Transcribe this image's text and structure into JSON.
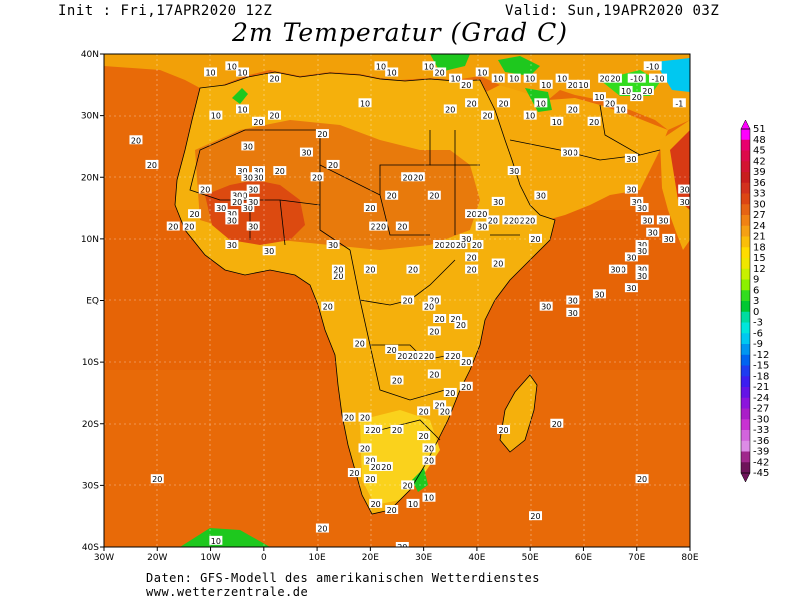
{
  "header": {
    "init": "Init : Fri,17APR2020 12Z",
    "valid": "Valid: Sun,19APR2020 03Z",
    "title": "2m Temperatur (Grad C)"
  },
  "footer": {
    "line1": "Daten: GFS-Modell des amerikanischen Wetterdienstes",
    "line2": "www.wetterzentrale.de"
  },
  "map": {
    "lon_range": [
      -30,
      80
    ],
    "lat_range": [
      -40,
      40
    ],
    "lon_ticks": [
      "30W",
      "20W",
      "10W",
      "0",
      "10E",
      "20E",
      "30E",
      "40E",
      "50E",
      "60E",
      "70E",
      "80E"
    ],
    "lat_ticks": [
      "40N",
      "30N",
      "20N",
      "10N",
      "EQ",
      "10S",
      "20S",
      "30S",
      "40S"
    ],
    "ocean_color": "#e86a08",
    "land_color": "#f9c002",
    "hot_color": "#d83a14",
    "cool_color": "#1ec81e",
    "labels": [
      {
        "v": "10",
        "lon": -10,
        "lat": 37
      },
      {
        "v": "10",
        "lon": -6,
        "lat": 38
      },
      {
        "v": "10",
        "lon": -4,
        "lat": 37
      },
      {
        "v": "20",
        "lon": 2,
        "lat": 36
      },
      {
        "v": "10",
        "lon": -9,
        "lat": 30
      },
      {
        "v": "10",
        "lon": -4,
        "lat": 31
      },
      {
        "v": "20",
        "lon": -1,
        "lat": 29
      },
      {
        "v": "20",
        "lon": 2,
        "lat": 30
      },
      {
        "v": "10",
        "lon": 22,
        "lat": 38
      },
      {
        "v": "10",
        "lon": 24,
        "lat": 37
      },
      {
        "v": "10",
        "lon": 31,
        "lat": 38
      },
      {
        "v": "20",
        "lon": 33,
        "lat": 37
      },
      {
        "v": "10",
        "lon": 36,
        "lat": 36
      },
      {
        "v": "20",
        "lon": 38,
        "lat": 35
      },
      {
        "v": "10",
        "lon": 41,
        "lat": 37
      },
      {
        "v": "10",
        "lon": 44,
        "lat": 36
      },
      {
        "v": "10",
        "lon": 47,
        "lat": 36
      },
      {
        "v": "10",
        "lon": 50,
        "lat": 36
      },
      {
        "v": "10",
        "lon": 53,
        "lat": 35
      },
      {
        "v": "10",
        "lon": 56,
        "lat": 36
      },
      {
        "v": "20",
        "lon": 58,
        "lat": 35
      },
      {
        "v": "10",
        "lon": 60,
        "lat": 35
      },
      {
        "v": "20",
        "lon": 64,
        "lat": 36
      },
      {
        "v": "20",
        "lon": 66,
        "lat": 36
      },
      {
        "v": "-10",
        "lon": 70,
        "lat": 36
      },
      {
        "v": "-10",
        "lon": 73,
        "lat": 38
      },
      {
        "v": "-10",
        "lon": 74,
        "lat": 36
      },
      {
        "v": "20",
        "lon": 72,
        "lat": 34
      },
      {
        "v": "10",
        "lon": 63,
        "lat": 33
      },
      {
        "v": "20",
        "lon": 65,
        "lat": 32
      },
      {
        "v": "10",
        "lon": 68,
        "lat": 34
      },
      {
        "v": "20",
        "lon": 70,
        "lat": 33
      },
      {
        "v": "10",
        "lon": 67,
        "lat": 31
      },
      {
        "v": "-1",
        "lon": 78,
        "lat": 32
      },
      {
        "v": "10",
        "lon": 52,
        "lat": 32
      },
      {
        "v": "20",
        "lon": 58,
        "lat": 31
      },
      {
        "v": "10",
        "lon": 50,
        "lat": 30
      },
      {
        "v": "10",
        "lon": 55,
        "lat": 29
      },
      {
        "v": "20",
        "lon": 62,
        "lat": 29
      },
      {
        "v": "10",
        "lon": 19,
        "lat": 32
      },
      {
        "v": "20",
        "lon": 35,
        "lat": 31
      },
      {
        "v": "20",
        "lon": 39,
        "lat": 32
      },
      {
        "v": "20",
        "lon": 45,
        "lat": 32
      },
      {
        "v": "20",
        "lon": 42,
        "lat": 30
      },
      {
        "v": "20",
        "lon": 11,
        "lat": 27
      },
      {
        "v": "20",
        "lon": -24,
        "lat": 26
      },
      {
        "v": "20",
        "lon": -21,
        "lat": 22
      },
      {
        "v": "30",
        "lon": -3,
        "lat": 25
      },
      {
        "v": "30",
        "lon": 8,
        "lat": 24
      },
      {
        "v": "20",
        "lon": 3,
        "lat": 21
      },
      {
        "v": "20",
        "lon": 10,
        "lat": 20
      },
      {
        "v": "20",
        "lon": 13,
        "lat": 22
      },
      {
        "v": "30",
        "lon": -1,
        "lat": 21
      },
      {
        "v": "30",
        "lon": -1,
        "lat": 20
      },
      {
        "v": "30",
        "lon": -4,
        "lat": 21
      },
      {
        "v": "30",
        "lon": -3,
        "lat": 20
      },
      {
        "v": "30",
        "lon": -2,
        "lat": 18
      },
      {
        "v": "30",
        "lon": -4,
        "lat": 17
      },
      {
        "v": "30",
        "lon": -8,
        "lat": 15
      },
      {
        "v": "30",
        "lon": -6,
        "lat": 14
      },
      {
        "v": "30",
        "lon": -5,
        "lat": 17
      },
      {
        "v": "30",
        "lon": -3,
        "lat": 15
      },
      {
        "v": "30",
        "lon": -2,
        "lat": 16
      },
      {
        "v": "20",
        "lon": -5,
        "lat": 16
      },
      {
        "v": "30",
        "lon": -2,
        "lat": 12
      },
      {
        "v": "30",
        "lon": -6,
        "lat": 13
      },
      {
        "v": "30",
        "lon": -6,
        "lat": 9
      },
      {
        "v": "30",
        "lon": 1,
        "lat": 8
      },
      {
        "v": "20",
        "lon": -17,
        "lat": 12
      },
      {
        "v": "20",
        "lon": -11,
        "lat": 18
      },
      {
        "v": "20",
        "lon": -13,
        "lat": 14
      },
      {
        "v": "20",
        "lon": -14,
        "lat": 12
      },
      {
        "v": "20",
        "lon": 29,
        "lat": 20
      },
      {
        "v": "20",
        "lon": 27,
        "lat": 20
      },
      {
        "v": "20",
        "lon": 32,
        "lat": 17
      },
      {
        "v": "20",
        "lon": 24,
        "lat": 17
      },
      {
        "v": "20",
        "lon": 20,
        "lat": 15
      },
      {
        "v": "20",
        "lon": 21,
        "lat": 12
      },
      {
        "v": "20",
        "lon": 22,
        "lat": 12
      },
      {
        "v": "20",
        "lon": 26,
        "lat": 12
      },
      {
        "v": "20",
        "lon": 39,
        "lat": 14
      },
      {
        "v": "20",
        "lon": 41,
        "lat": 14
      },
      {
        "v": "30",
        "lon": 44,
        "lat": 16
      },
      {
        "v": "30",
        "lon": 47,
        "lat": 21
      },
      {
        "v": "30",
        "lon": 52,
        "lat": 17
      },
      {
        "v": "30",
        "lon": 41,
        "lat": 12
      },
      {
        "v": "20",
        "lon": 43,
        "lat": 13
      },
      {
        "v": "20",
        "lon": 46,
        "lat": 13
      },
      {
        "v": "20",
        "lon": 47,
        "lat": 13
      },
      {
        "v": "20",
        "lon": 49,
        "lat": 13
      },
      {
        "v": "20",
        "lon": 50,
        "lat": 13
      },
      {
        "v": "20",
        "lon": 33,
        "lat": 9
      },
      {
        "v": "20",
        "lon": 35,
        "lat": 9
      },
      {
        "v": "20",
        "lon": 37,
        "lat": 9
      },
      {
        "v": "20",
        "lon": 40,
        "lat": 9
      },
      {
        "v": "30",
        "lon": 38,
        "lat": 10
      },
      {
        "v": "20",
        "lon": 44,
        "lat": 6
      },
      {
        "v": "20",
        "lon": 39,
        "lat": 7
      },
      {
        "v": "20",
        "lon": 39,
        "lat": 5
      },
      {
        "v": "20",
        "lon": 51,
        "lat": 10
      },
      {
        "v": "30",
        "lon": 58,
        "lat": 24
      },
      {
        "v": "30",
        "lon": 57,
        "lat": 24
      },
      {
        "v": "30",
        "lon": 69,
        "lat": 23
      },
      {
        "v": "30",
        "lon": 69,
        "lat": 18
      },
      {
        "v": "30",
        "lon": 70,
        "lat": 16
      },
      {
        "v": "30",
        "lon": 71,
        "lat": 15
      },
      {
        "v": "30",
        "lon": 72,
        "lat": 13
      },
      {
        "v": "30",
        "lon": 73,
        "lat": 11
      },
      {
        "v": "30",
        "lon": 71,
        "lat": 9
      },
      {
        "v": "30",
        "lon": 71,
        "lat": 8
      },
      {
        "v": "30",
        "lon": 75,
        "lat": 13
      },
      {
        "v": "30",
        "lon": 76,
        "lat": 10
      },
      {
        "v": "30",
        "lon": 79,
        "lat": 18
      },
      {
        "v": "30",
        "lon": 79,
        "lat": 16
      },
      {
        "v": "30",
        "lon": 69,
        "lat": 7
      },
      {
        "v": "30",
        "lon": 67,
        "lat": 5
      },
      {
        "v": "30",
        "lon": 71,
        "lat": 5
      },
      {
        "v": "30",
        "lon": 66,
        "lat": 5
      },
      {
        "v": "30",
        "lon": 71,
        "lat": 4
      },
      {
        "v": "30",
        "lon": 69,
        "lat": 2
      },
      {
        "v": "30",
        "lon": 63,
        "lat": 1
      },
      {
        "v": "30",
        "lon": 58,
        "lat": 0
      },
      {
        "v": "30",
        "lon": 58,
        "lat": -2
      },
      {
        "v": "30",
        "lon": 53,
        "lat": -1
      },
      {
        "v": "30",
        "lon": 13,
        "lat": 9
      },
      {
        "v": "20",
        "lon": 14,
        "lat": 4
      },
      {
        "v": "20",
        "lon": 14,
        "lat": 5
      },
      {
        "v": "20",
        "lon": 20,
        "lat": 5
      },
      {
        "v": "20",
        "lon": 28,
        "lat": 5
      },
      {
        "v": "20",
        "lon": 27,
        "lat": 0
      },
      {
        "v": "20",
        "lon": 32,
        "lat": 0
      },
      {
        "v": "20",
        "lon": 31,
        "lat": -1
      },
      {
        "v": "20",
        "lon": 33,
        "lat": -3
      },
      {
        "v": "20",
        "lon": 32,
        "lat": -5
      },
      {
        "v": "20",
        "lon": 36,
        "lat": -3
      },
      {
        "v": "20",
        "lon": 37,
        "lat": -4
      },
      {
        "v": "20",
        "lon": 12,
        "lat": -1
      },
      {
        "v": "20",
        "lon": 18,
        "lat": -7
      },
      {
        "v": "20",
        "lon": 24,
        "lat": -8
      },
      {
        "v": "20",
        "lon": 26,
        "lat": -9
      },
      {
        "v": "20",
        "lon": 28,
        "lat": -9
      },
      {
        "v": "20",
        "lon": 30,
        "lat": -9
      },
      {
        "v": "20",
        "lon": 31,
        "lat": -9
      },
      {
        "v": "20",
        "lon": 35,
        "lat": -9
      },
      {
        "v": "20",
        "lon": 36,
        "lat": -9
      },
      {
        "v": "20",
        "lon": 38,
        "lat": -10
      },
      {
        "v": "20",
        "lon": 32,
        "lat": -12
      },
      {
        "v": "20",
        "lon": 25,
        "lat": -13
      },
      {
        "v": "20",
        "lon": 35,
        "lat": -15
      },
      {
        "v": "20",
        "lon": 33,
        "lat": -17
      },
      {
        "v": "20",
        "lon": 34,
        "lat": -18
      },
      {
        "v": "20",
        "lon": 38,
        "lat": -14
      },
      {
        "v": "20",
        "lon": 16,
        "lat": -19
      },
      {
        "v": "20",
        "lon": 19,
        "lat": -19
      },
      {
        "v": "20",
        "lon": 20,
        "lat": -21
      },
      {
        "v": "20",
        "lon": 21,
        "lat": -21
      },
      {
        "v": "20",
        "lon": 25,
        "lat": -21
      },
      {
        "v": "20",
        "lon": 30,
        "lat": -18
      },
      {
        "v": "20",
        "lon": 19,
        "lat": -24
      },
      {
        "v": "20",
        "lon": 20,
        "lat": -26
      },
      {
        "v": "20",
        "lon": 21,
        "lat": -27
      },
      {
        "v": "20",
        "lon": 30,
        "lat": -22
      },
      {
        "v": "20",
        "lon": 31,
        "lat": -24
      },
      {
        "v": "20",
        "lon": 31,
        "lat": -26
      },
      {
        "v": "20",
        "lon": 17,
        "lat": -28
      },
      {
        "v": "20",
        "lon": 20,
        "lat": -29
      },
      {
        "v": "20",
        "lon": 23,
        "lat": -27
      },
      {
        "v": "20",
        "lon": 27,
        "lat": -30
      },
      {
        "v": "20",
        "lon": 21,
        "lat": -33
      },
      {
        "v": "20",
        "lon": 24,
        "lat": -34
      },
      {
        "v": "10",
        "lon": 28,
        "lat": -33
      },
      {
        "v": "10",
        "lon": 31,
        "lat": -32
      },
      {
        "v": "20",
        "lon": 26,
        "lat": -40
      },
      {
        "v": "20",
        "lon": 11,
        "lat": -37
      },
      {
        "v": "20",
        "lon": -20,
        "lat": -29
      },
      {
        "v": "10",
        "lon": -9,
        "lat": -39
      },
      {
        "v": "20",
        "lon": 45,
        "lat": -21
      },
      {
        "v": "20",
        "lon": 55,
        "lat": -20
      },
      {
        "v": "20",
        "lon": 51,
        "lat": -35
      },
      {
        "v": "20",
        "lon": 71,
        "lat": -29
      }
    ],
    "colorbar": {
      "ticks": [
        "51",
        "48",
        "45",
        "42",
        "39",
        "36",
        "33",
        "30",
        "27",
        "24",
        "21",
        "18",
        "15",
        "12",
        "9",
        "6",
        "3",
        "0",
        "-3",
        "-6",
        "-9",
        "-12",
        "-15",
        "-18",
        "-21",
        "-24",
        "-27",
        "-30",
        "-33",
        "-36",
        "-39",
        "-42",
        "-45"
      ],
      "colors": [
        "#ff00ff",
        "#e8006e",
        "#dc0a4a",
        "#d21432",
        "#c81e1e",
        "#d2321e",
        "#dc4614",
        "#e66414",
        "#f08214",
        "#f5a014",
        "#fabe0a",
        "#ffdc00",
        "#f0e600",
        "#c8f000",
        "#8cf000",
        "#32dc1e",
        "#00c832",
        "#00dca0",
        "#00e6dc",
        "#00c8f0",
        "#0096f0",
        "#0064f0",
        "#1e3cf0",
        "#3c1ef0",
        "#6414e6",
        "#8c14dc",
        "#aa1ec8",
        "#c832d2",
        "#d264dc",
        "#dc8ce6",
        "#a0288c",
        "#6e145a"
      ]
    }
  }
}
